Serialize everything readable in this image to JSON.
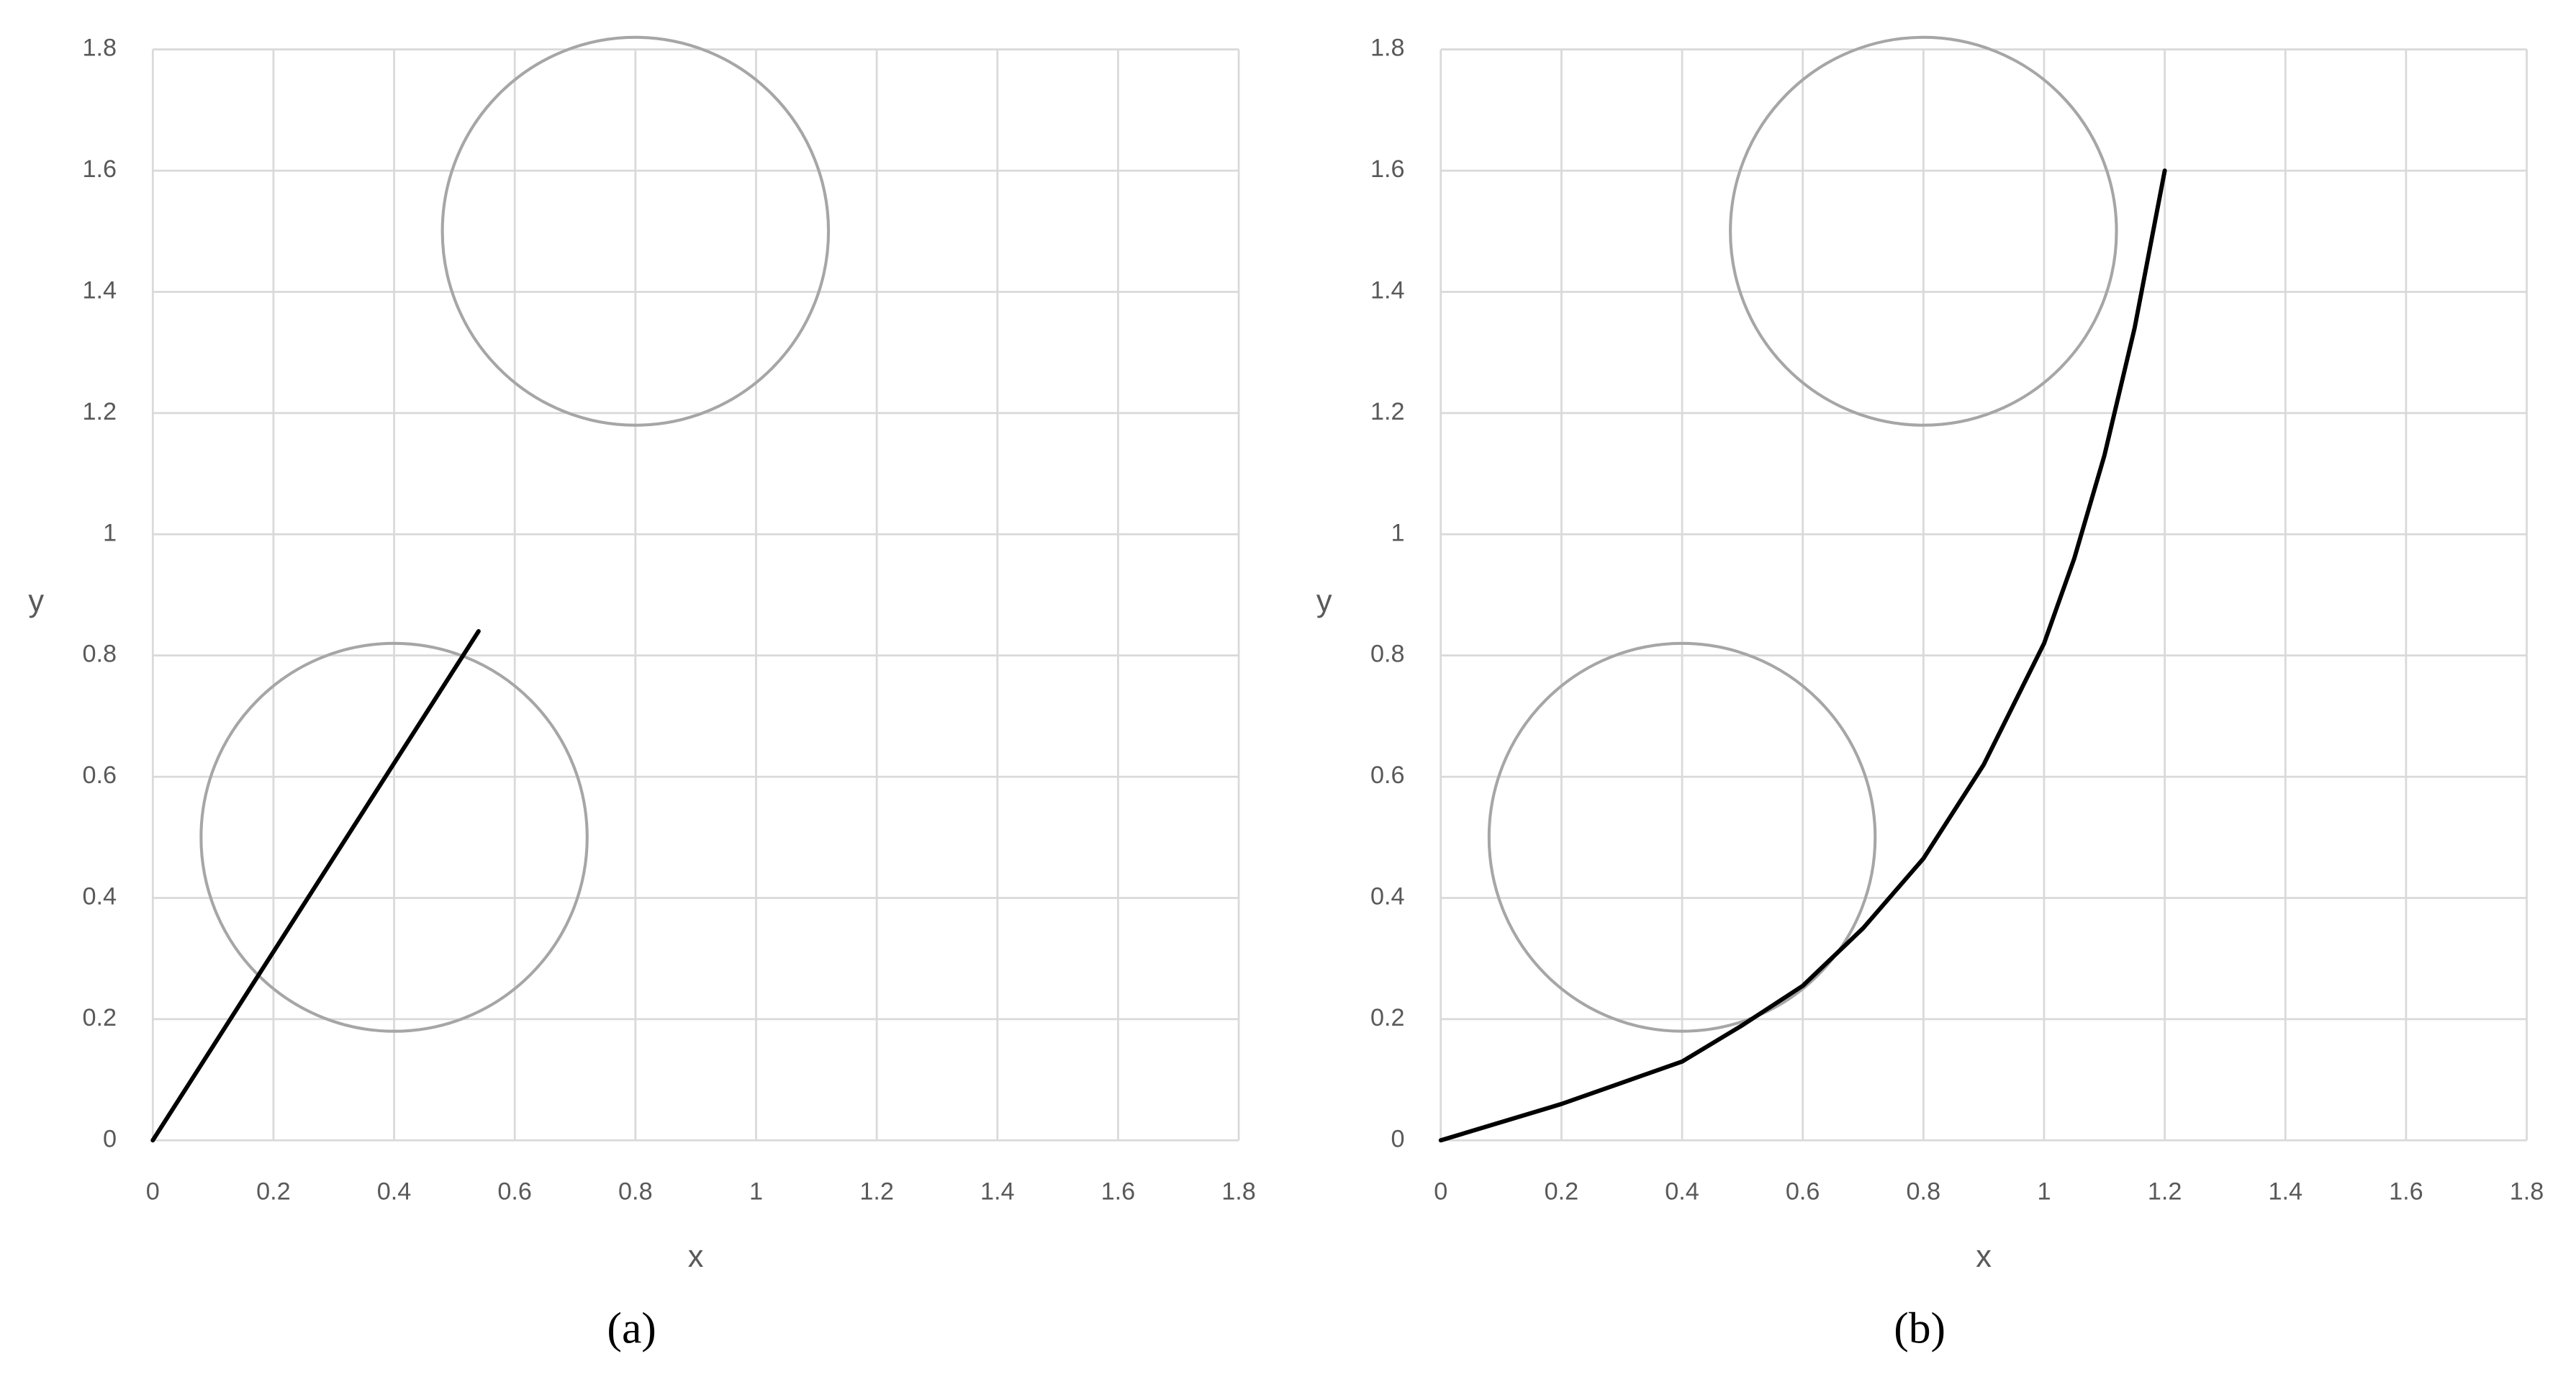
{
  "chart_data": [
    {
      "type": "line",
      "panel_label": "(a)",
      "x_label": "x",
      "y_label": "y",
      "xlim": [
        0,
        1.8
      ],
      "ylim": [
        0,
        1.8
      ],
      "xticks": [
        0,
        0.2,
        0.4,
        0.6,
        0.8,
        1,
        1.2,
        1.4,
        1.6,
        1.8
      ],
      "yticks": [
        0,
        0.2,
        0.4,
        0.6,
        0.8,
        1,
        1.2,
        1.4,
        1.6,
        1.8
      ],
      "grid": true,
      "circles": [
        {
          "cx": 0.4,
          "cy": 0.5,
          "r": 0.32,
          "color": "#a6a6a6"
        },
        {
          "cx": 0.8,
          "cy": 1.5,
          "r": 0.32,
          "color": "#a6a6a6"
        }
      ],
      "series": [
        {
          "color": "#000000",
          "x": [
            0,
            0.54
          ],
          "values": [
            0,
            0.84
          ]
        }
      ]
    },
    {
      "type": "line",
      "panel_label": "(b)",
      "x_label": "x",
      "y_label": "y",
      "xlim": [
        0,
        1.8
      ],
      "ylim": [
        0,
        1.8
      ],
      "xticks": [
        0,
        0.2,
        0.4,
        0.6,
        0.8,
        1,
        1.2,
        1.4,
        1.6,
        1.8
      ],
      "yticks": [
        0,
        0.2,
        0.4,
        0.6,
        0.8,
        1,
        1.2,
        1.4,
        1.6,
        1.8
      ],
      "grid": true,
      "circles": [
        {
          "cx": 0.4,
          "cy": 0.5,
          "r": 0.32,
          "color": "#a6a6a6"
        },
        {
          "cx": 0.8,
          "cy": 1.5,
          "r": 0.32,
          "color": "#a6a6a6"
        }
      ],
      "series": [
        {
          "color": "#000000",
          "x": [
            0,
            0.1,
            0.2,
            0.3,
            0.4,
            0.5,
            0.6,
            0.7,
            0.8,
            0.9,
            1,
            1.05,
            1.1,
            1.15,
            1.2
          ],
          "values": [
            0,
            0.03,
            0.06,
            0.095,
            0.13,
            0.19,
            0.255,
            0.35,
            0.465,
            0.62,
            0.82,
            0.96,
            1.13,
            1.34,
            1.6
          ]
        }
      ]
    }
  ]
}
